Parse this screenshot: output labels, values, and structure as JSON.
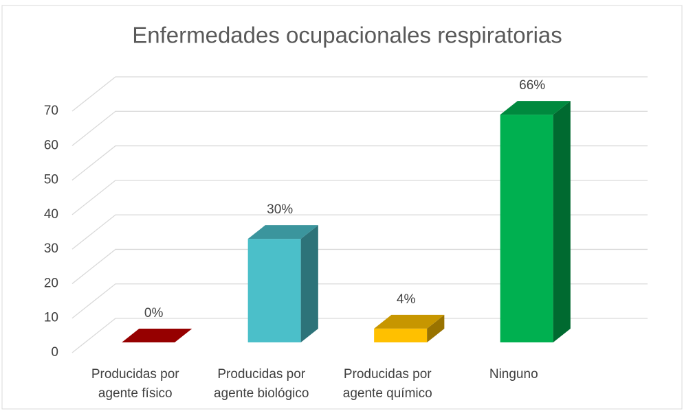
{
  "chart_data": {
    "type": "bar3d",
    "title": "Enfermedades ocupacionales respiratorias",
    "categories": [
      "Producidas por agente físico",
      "Producidas por agente biológico",
      "Producidas por agente químico",
      "Ninguno"
    ],
    "values": [
      0,
      30,
      4,
      66
    ],
    "value_labels": [
      "0%",
      "30%",
      "4%",
      "66%"
    ],
    "colors": [
      "#c00000",
      "#4bbfc9",
      "#ffc000",
      "#00b050"
    ],
    "ylim": [
      0,
      70
    ],
    "yticks": [
      0,
      10,
      20,
      30,
      40,
      50,
      60,
      70
    ],
    "grid": true
  }
}
